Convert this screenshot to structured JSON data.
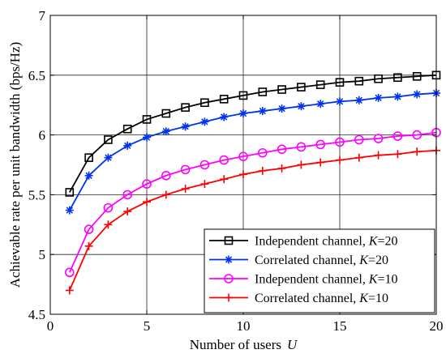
{
  "chart_data": {
    "type": "line",
    "xlabel": "Number of users",
    "xlabel_var": "U",
    "ylabel": "Achievable rate per unit bandwidth (bps/Hz)",
    "xlim": [
      0,
      20
    ],
    "ylim": [
      4.5,
      7
    ],
    "x_ticks": [
      "0",
      "5",
      "10",
      "15",
      "20"
    ],
    "y_ticks": [
      "4.5",
      "5",
      "5.5",
      "6",
      "6.5",
      "7"
    ],
    "x_tick_values": [
      0,
      5,
      10,
      15,
      20
    ],
    "y_tick_values": [
      4.5,
      5,
      5.5,
      6,
      6.5,
      7
    ],
    "grid": true,
    "legend_position": "bottom-right",
    "x": [
      1,
      2,
      3,
      4,
      5,
      6,
      7,
      8,
      9,
      10,
      11,
      12,
      13,
      14,
      15,
      16,
      17,
      18,
      19,
      20
    ],
    "series": [
      {
        "name": "Independent channel, ",
        "var": "K",
        "eq": "=20",
        "color": "#000000",
        "marker": "square",
        "values": [
          5.52,
          5.81,
          5.96,
          6.05,
          6.13,
          6.18,
          6.23,
          6.27,
          6.3,
          6.33,
          6.36,
          6.38,
          6.4,
          6.42,
          6.44,
          6.45,
          6.47,
          6.48,
          6.49,
          6.5
        ]
      },
      {
        "name": "Correlated channel, ",
        "var": "K",
        "eq": "=20",
        "color": "#0033ee",
        "marker": "asterisk",
        "values": [
          5.37,
          5.66,
          5.81,
          5.91,
          5.98,
          6.03,
          6.07,
          6.11,
          6.15,
          6.18,
          6.2,
          6.22,
          6.24,
          6.26,
          6.28,
          6.29,
          6.31,
          6.32,
          6.34,
          6.35
        ]
      },
      {
        "name": "Independent channel, ",
        "var": "K",
        "eq": "=10",
        "color": "#ff00ff",
        "marker": "circle",
        "values": [
          4.85,
          5.21,
          5.39,
          5.5,
          5.59,
          5.66,
          5.71,
          5.75,
          5.79,
          5.82,
          5.85,
          5.88,
          5.9,
          5.92,
          5.94,
          5.96,
          5.97,
          5.99,
          6.0,
          6.02
        ]
      },
      {
        "name": "Correlated channel, ",
        "var": "K",
        "eq": "=10",
        "color": "#ff0000",
        "marker": "plus",
        "values": [
          4.7,
          5.07,
          5.25,
          5.36,
          5.44,
          5.5,
          5.55,
          5.59,
          5.63,
          5.67,
          5.7,
          5.72,
          5.75,
          5.77,
          5.79,
          5.81,
          5.83,
          5.84,
          5.86,
          5.87
        ]
      }
    ]
  }
}
